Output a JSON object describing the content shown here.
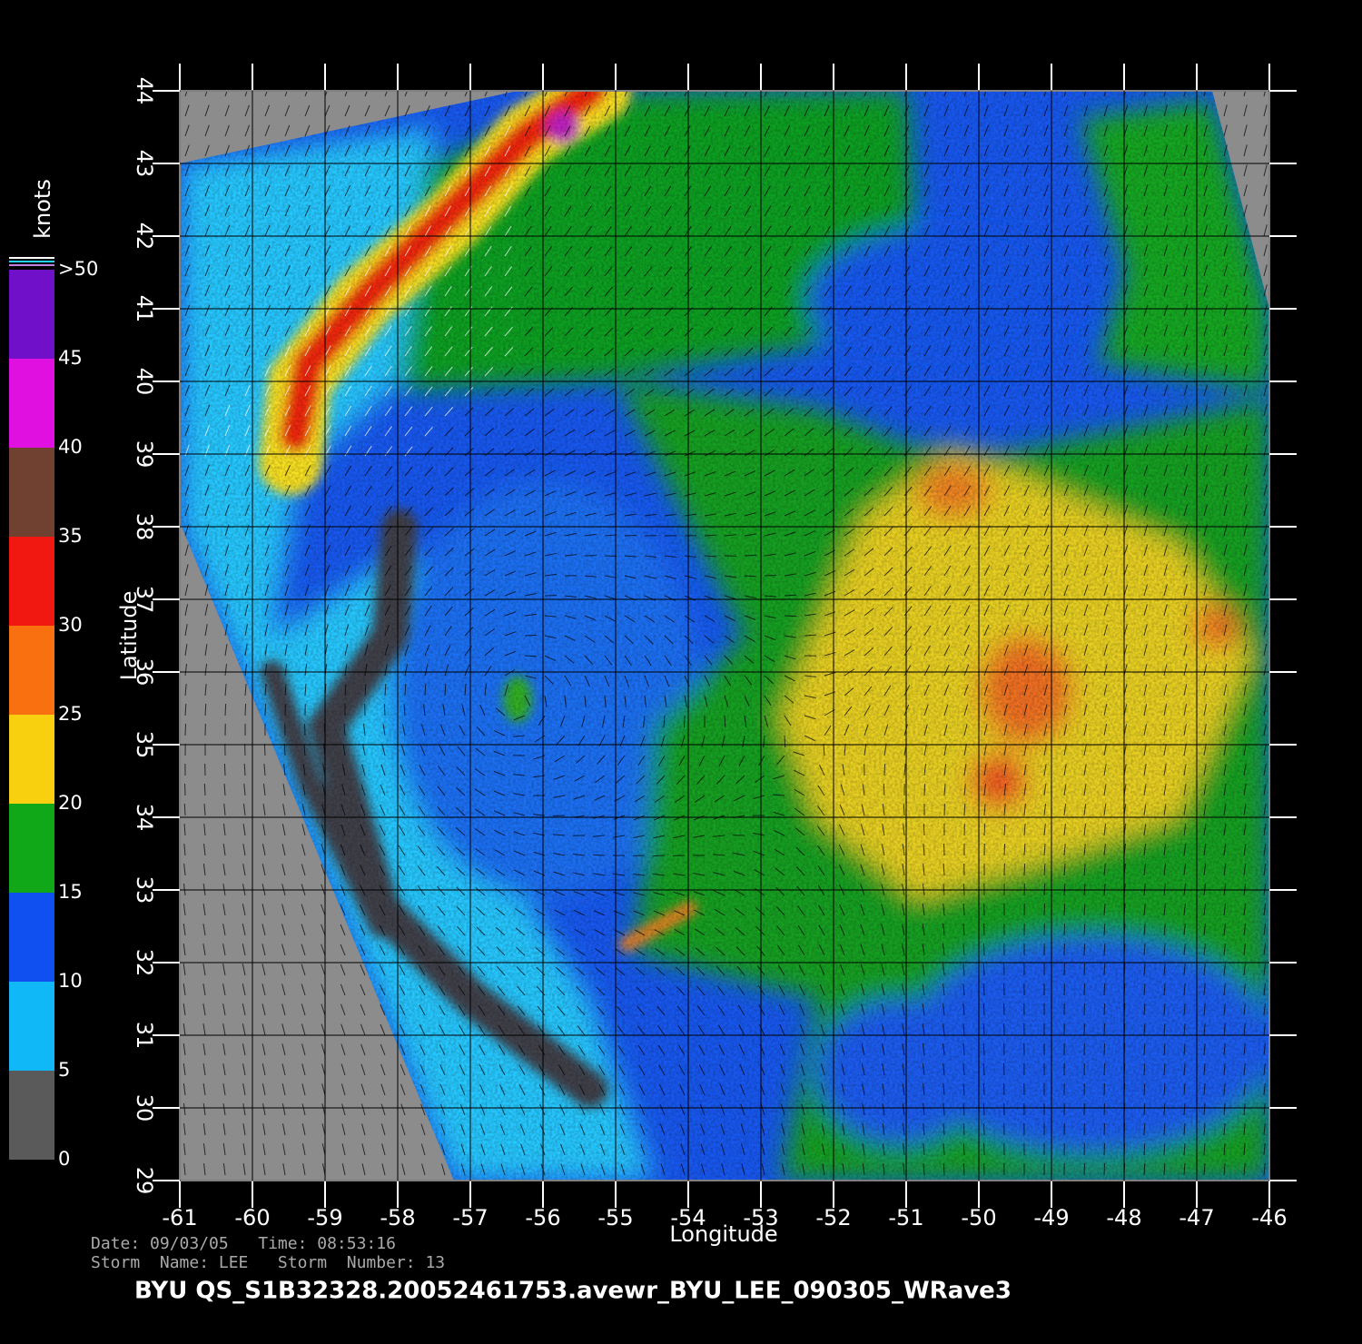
{
  "chart_data": {
    "type": "map",
    "x_label": "Longitude",
    "y_label": "Latitude",
    "xlim": [
      -61,
      -46
    ],
    "ylim": [
      29,
      44
    ],
    "xticks": [
      -61,
      -60,
      -59,
      -58,
      -57,
      -56,
      -55,
      -54,
      -53,
      -52,
      -51,
      -50,
      -49,
      -48,
      -47,
      -46
    ],
    "yticks": [
      29,
      30,
      31,
      32,
      33,
      34,
      35,
      36,
      37,
      38,
      39,
      40,
      41,
      42,
      43,
      44
    ],
    "grid": true,
    "colorbar": {
      "label": "knots",
      "ticks": [
        0,
        5,
        10,
        15,
        20,
        25,
        30,
        35,
        40,
        45,
        {
          "value": 50,
          "label": ">50"
        }
      ],
      "colors": [
        "#5a5a5a",
        "#10b8f8",
        "#1050f0",
        "#10a818",
        "#f8d010",
        "#f87010",
        "#f01810",
        "#704030",
        "#e010e0",
        "#7010c8"
      ]
    },
    "footer": {
      "line1": "Date: 09/03/05   Time: 08:53:16",
      "line2": "Storm  Name: LEE   Storm  Number: 13",
      "title": "BYU  QS_S1B32328.20052461753.avewr_BYU_LEE_090305_WRave3"
    }
  }
}
